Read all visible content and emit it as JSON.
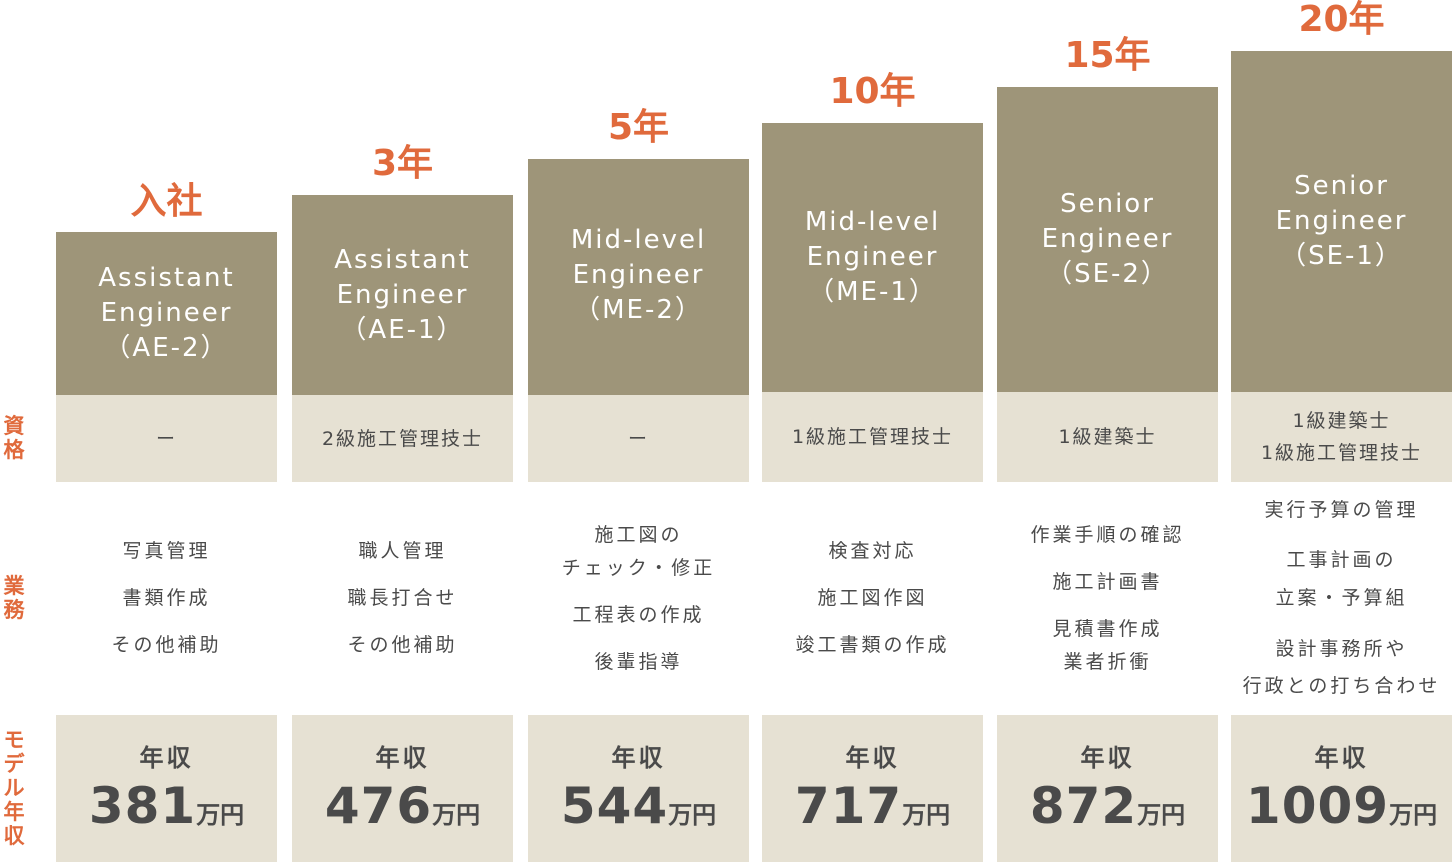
{
  "row_labels": {
    "qualification": [
      "資",
      "格"
    ],
    "duties": [
      "業",
      "務"
    ],
    "salary": [
      "モ",
      "デ",
      "ル",
      "年",
      "収"
    ]
  },
  "salary_label": "年収",
  "salary_unit": "万円",
  "columns": [
    {
      "year": "入社",
      "title": [
        "Assistant",
        "Engineer",
        "（AE-2）"
      ],
      "qualification": [
        "ー"
      ],
      "duties": [
        "写真管理",
        "書類作成",
        "その他補助"
      ],
      "salary": "381"
    },
    {
      "year": "3年",
      "title": [
        "Assistant",
        "Engineer",
        "（AE-1）"
      ],
      "qualification": [
        "2級施工管理技士"
      ],
      "duties": [
        "職人管理",
        "職長打合せ",
        "その他補助"
      ],
      "salary": "476"
    },
    {
      "year": "5年",
      "title": [
        "Mid-level",
        "Engineer",
        "（ME-2）"
      ],
      "qualification": [
        "ー"
      ],
      "duties": [
        "施工図の\nチェック・修正",
        "工程表の作成",
        "後輩指導"
      ],
      "salary": "544"
    },
    {
      "year": "10年",
      "title": [
        "Mid-level",
        "Engineer",
        "（ME-1）"
      ],
      "qualification": [
        "1級施工管理技士"
      ],
      "duties": [
        "検査対応",
        "施工図作図",
        "竣工書類の作成"
      ],
      "salary": "717"
    },
    {
      "year": "15年",
      "title": [
        "Senior",
        "Engineer",
        "（SE-2）"
      ],
      "qualification": [
        "1級建築士"
      ],
      "duties": [
        "作業手順の確認",
        "施工計画書",
        "見積書作成\n業者折衝"
      ],
      "salary": "872"
    },
    {
      "year": "20年",
      "title": [
        "Senior",
        "Engineer",
        "（SE-1）"
      ],
      "qualification": [
        "1級建築士",
        "1級施工管理技士"
      ],
      "duties": [
        "実行予算の管理",
        "工事計画の\n立案・予算組",
        "設計事務所や\n行政との打ち合わせ"
      ],
      "salary": "1009"
    }
  ]
}
